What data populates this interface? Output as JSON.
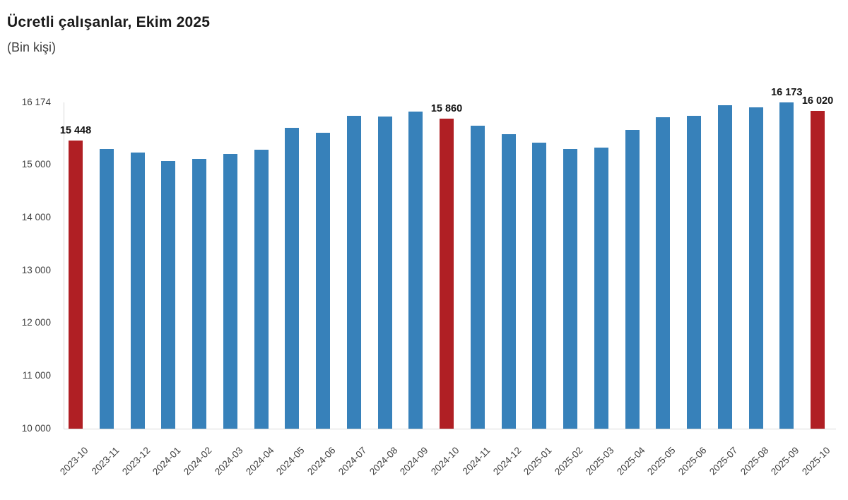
{
  "chart_data": {
    "type": "bar",
    "title": "Ücretli çalışanlar, Ekim 2025",
    "subtitle": "(Bin kişi)",
    "xlabel": "",
    "ylabel": "Bin kişi",
    "grid": false,
    "legend": false,
    "ylim": [
      10000,
      16174
    ],
    "categories": [
      "2023-10",
      "2023-11",
      "2023-12",
      "2024-01",
      "2024-02",
      "2024-03",
      "2024-04",
      "2024-05",
      "2024-06",
      "2024-07",
      "2024-08",
      "2024-09",
      "2024-10",
      "2024-11",
      "2024-12",
      "2025-01",
      "2025-02",
      "2025-03",
      "2025-04",
      "2025-05",
      "2025-06",
      "2025-07",
      "2025-08",
      "2025-09",
      "2025-10"
    ],
    "values": [
      15448,
      15295,
      15225,
      15060,
      15110,
      15200,
      15285,
      15690,
      15600,
      15925,
      15910,
      15995,
      15860,
      15730,
      15575,
      15410,
      15290,
      15320,
      15650,
      15890,
      15925,
      16115,
      16085,
      16173,
      16020
    ],
    "highlighted_categories": [
      "2023-10",
      "2024-10",
      "2025-10"
    ],
    "data_labels": [
      {
        "category": "2023-10",
        "text": "15 448"
      },
      {
        "category": "2024-10",
        "text": "15 860"
      },
      {
        "category": "2025-09",
        "text": "16 173"
      },
      {
        "category": "2025-10",
        "text": "16 020"
      }
    ],
    "y_axis": {
      "min": 10000,
      "max": 16174,
      "ticks": [
        {
          "value": 16174,
          "label": "16 174"
        },
        {
          "value": 15000,
          "label": "15 000"
        },
        {
          "value": 14000,
          "label": "14 000"
        },
        {
          "value": 13000,
          "label": "13 000"
        },
        {
          "value": 12000,
          "label": "12 000"
        },
        {
          "value": 11000,
          "label": "11 000"
        },
        {
          "value": 10000,
          "label": "10 000"
        }
      ]
    },
    "colors": {
      "bar_default": "#3781BA",
      "bar_highlight": "#B01F24",
      "axis_line": "#D9D9D9",
      "tick_text": "#404040",
      "title_text": "#1A1A1A"
    }
  }
}
